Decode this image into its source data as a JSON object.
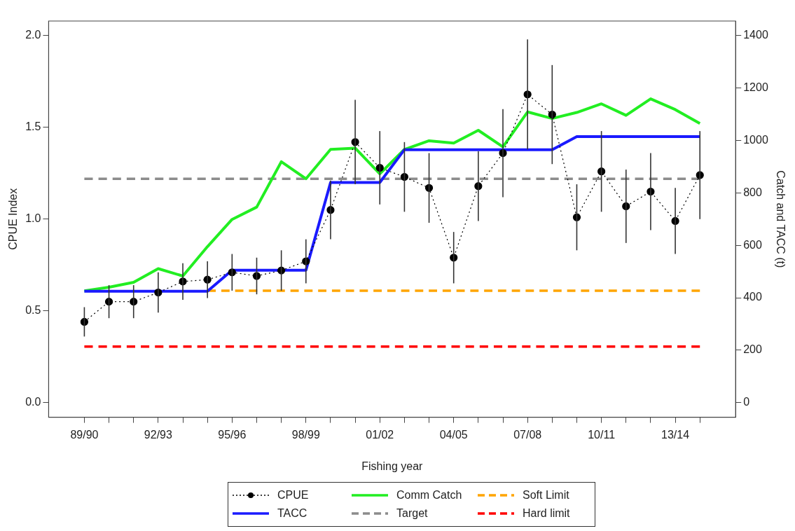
{
  "chart_data": {
    "type": "line",
    "xlabel": "Fishing year",
    "ylabel": "CPUE Index",
    "y2label": "Catch and TACC (t)",
    "categories": [
      "89/90",
      null,
      null,
      "92/93",
      null,
      null,
      "95/96",
      null,
      null,
      "98/99",
      null,
      null,
      "01/02",
      null,
      null,
      "04/05",
      null,
      null,
      "07/08",
      null,
      null,
      "10/11",
      null,
      null,
      "13/14",
      null
    ],
    "ylim": [
      -0.08,
      2.08
    ],
    "yticks": [
      {
        "value": 0,
        "label": "0.0"
      },
      {
        "value": 0.5,
        "label": "0.5"
      },
      {
        "value": 1,
        "label": "1.0"
      },
      {
        "value": 1.5,
        "label": "1.5"
      },
      {
        "value": 2,
        "label": "2.0"
      }
    ],
    "y2lim": [
      -56,
      1456
    ],
    "y2ticks": [
      0,
      200,
      400,
      600,
      800,
      1000,
      1200,
      1400
    ],
    "grid": false,
    "legend": "bottom",
    "series": [
      {
        "name": "CPUE",
        "color": "#000000",
        "marker": "circle",
        "line_style": "dotted",
        "values": [
          0.44,
          0.55,
          0.55,
          0.6,
          0.66,
          0.67,
          0.71,
          0.69,
          0.72,
          0.77,
          1.05,
          1.42,
          1.28,
          1.23,
          1.17,
          0.79,
          1.18,
          1.36,
          1.68,
          1.57,
          1.01,
          1.26,
          1.07,
          1.15,
          0.99,
          1.24
        ],
        "errors": [
          0.08,
          0.09,
          0.09,
          0.11,
          0.1,
          0.1,
          0.1,
          0.1,
          0.11,
          0.12,
          0.16,
          0.23,
          0.2,
          0.19,
          0.19,
          0.14,
          0.19,
          0.24,
          0.3,
          0.27,
          0.18,
          0.22,
          0.2,
          0.21,
          0.18,
          0.24
        ]
      },
      {
        "name": "TACC",
        "axis": "y2",
        "color": "#1a1aff",
        "marker": "none",
        "line_style": "solid",
        "values": [
          425,
          425,
          425,
          425,
          425,
          425,
          505,
          505,
          505,
          505,
          840,
          840,
          840,
          965,
          965,
          965,
          965,
          965,
          965,
          965,
          1015,
          1015,
          1015,
          1015,
          1015,
          1015
        ]
      },
      {
        "name": "Comm Catch",
        "axis": "y2",
        "color": "#22ee22",
        "marker": "none",
        "line_style": "solid",
        "values": [
          426,
          440,
          459,
          511,
          483,
          595,
          699,
          746,
          919,
          854,
          966,
          971,
          873,
          966,
          999,
          990,
          1039,
          976,
          1109,
          1084,
          1107,
          1140,
          1096,
          1159,
          1118,
          1065
        ]
      },
      {
        "name": "Target",
        "color": "#8c8c8c",
        "marker": "none",
        "line_style": "dashed",
        "values": [
          1.22,
          1.22,
          1.22,
          1.22,
          1.22,
          1.22,
          1.22,
          1.22,
          1.22,
          1.22,
          1.22,
          1.22,
          1.22,
          1.22,
          1.22,
          1.22,
          1.22,
          1.22,
          1.22,
          1.22,
          1.22,
          1.22,
          1.22,
          1.22,
          1.22,
          1.22
        ]
      },
      {
        "name": "Soft Limit",
        "color": "#ffa500",
        "marker": "none",
        "line_style": "dashed",
        "values": [
          null,
          null,
          null,
          null,
          null,
          0.61,
          0.61,
          0.61,
          0.61,
          0.61,
          0.61,
          0.61,
          0.61,
          0.61,
          0.61,
          0.61,
          0.61,
          0.61,
          0.61,
          0.61,
          0.61,
          0.61,
          0.61,
          0.61,
          0.61,
          0.61
        ]
      },
      {
        "name": "Hard limit",
        "color": "#ff0000",
        "marker": "none",
        "line_style": "dashed",
        "values": [
          0.305,
          0.305,
          0.305,
          0.305,
          0.305,
          0.305,
          0.305,
          0.305,
          0.305,
          0.305,
          0.305,
          0.305,
          0.305,
          0.305,
          0.305,
          0.305,
          0.305,
          0.305,
          0.305,
          0.305,
          0.305,
          0.305,
          0.305,
          0.305,
          0.305,
          0.305
        ]
      }
    ]
  }
}
